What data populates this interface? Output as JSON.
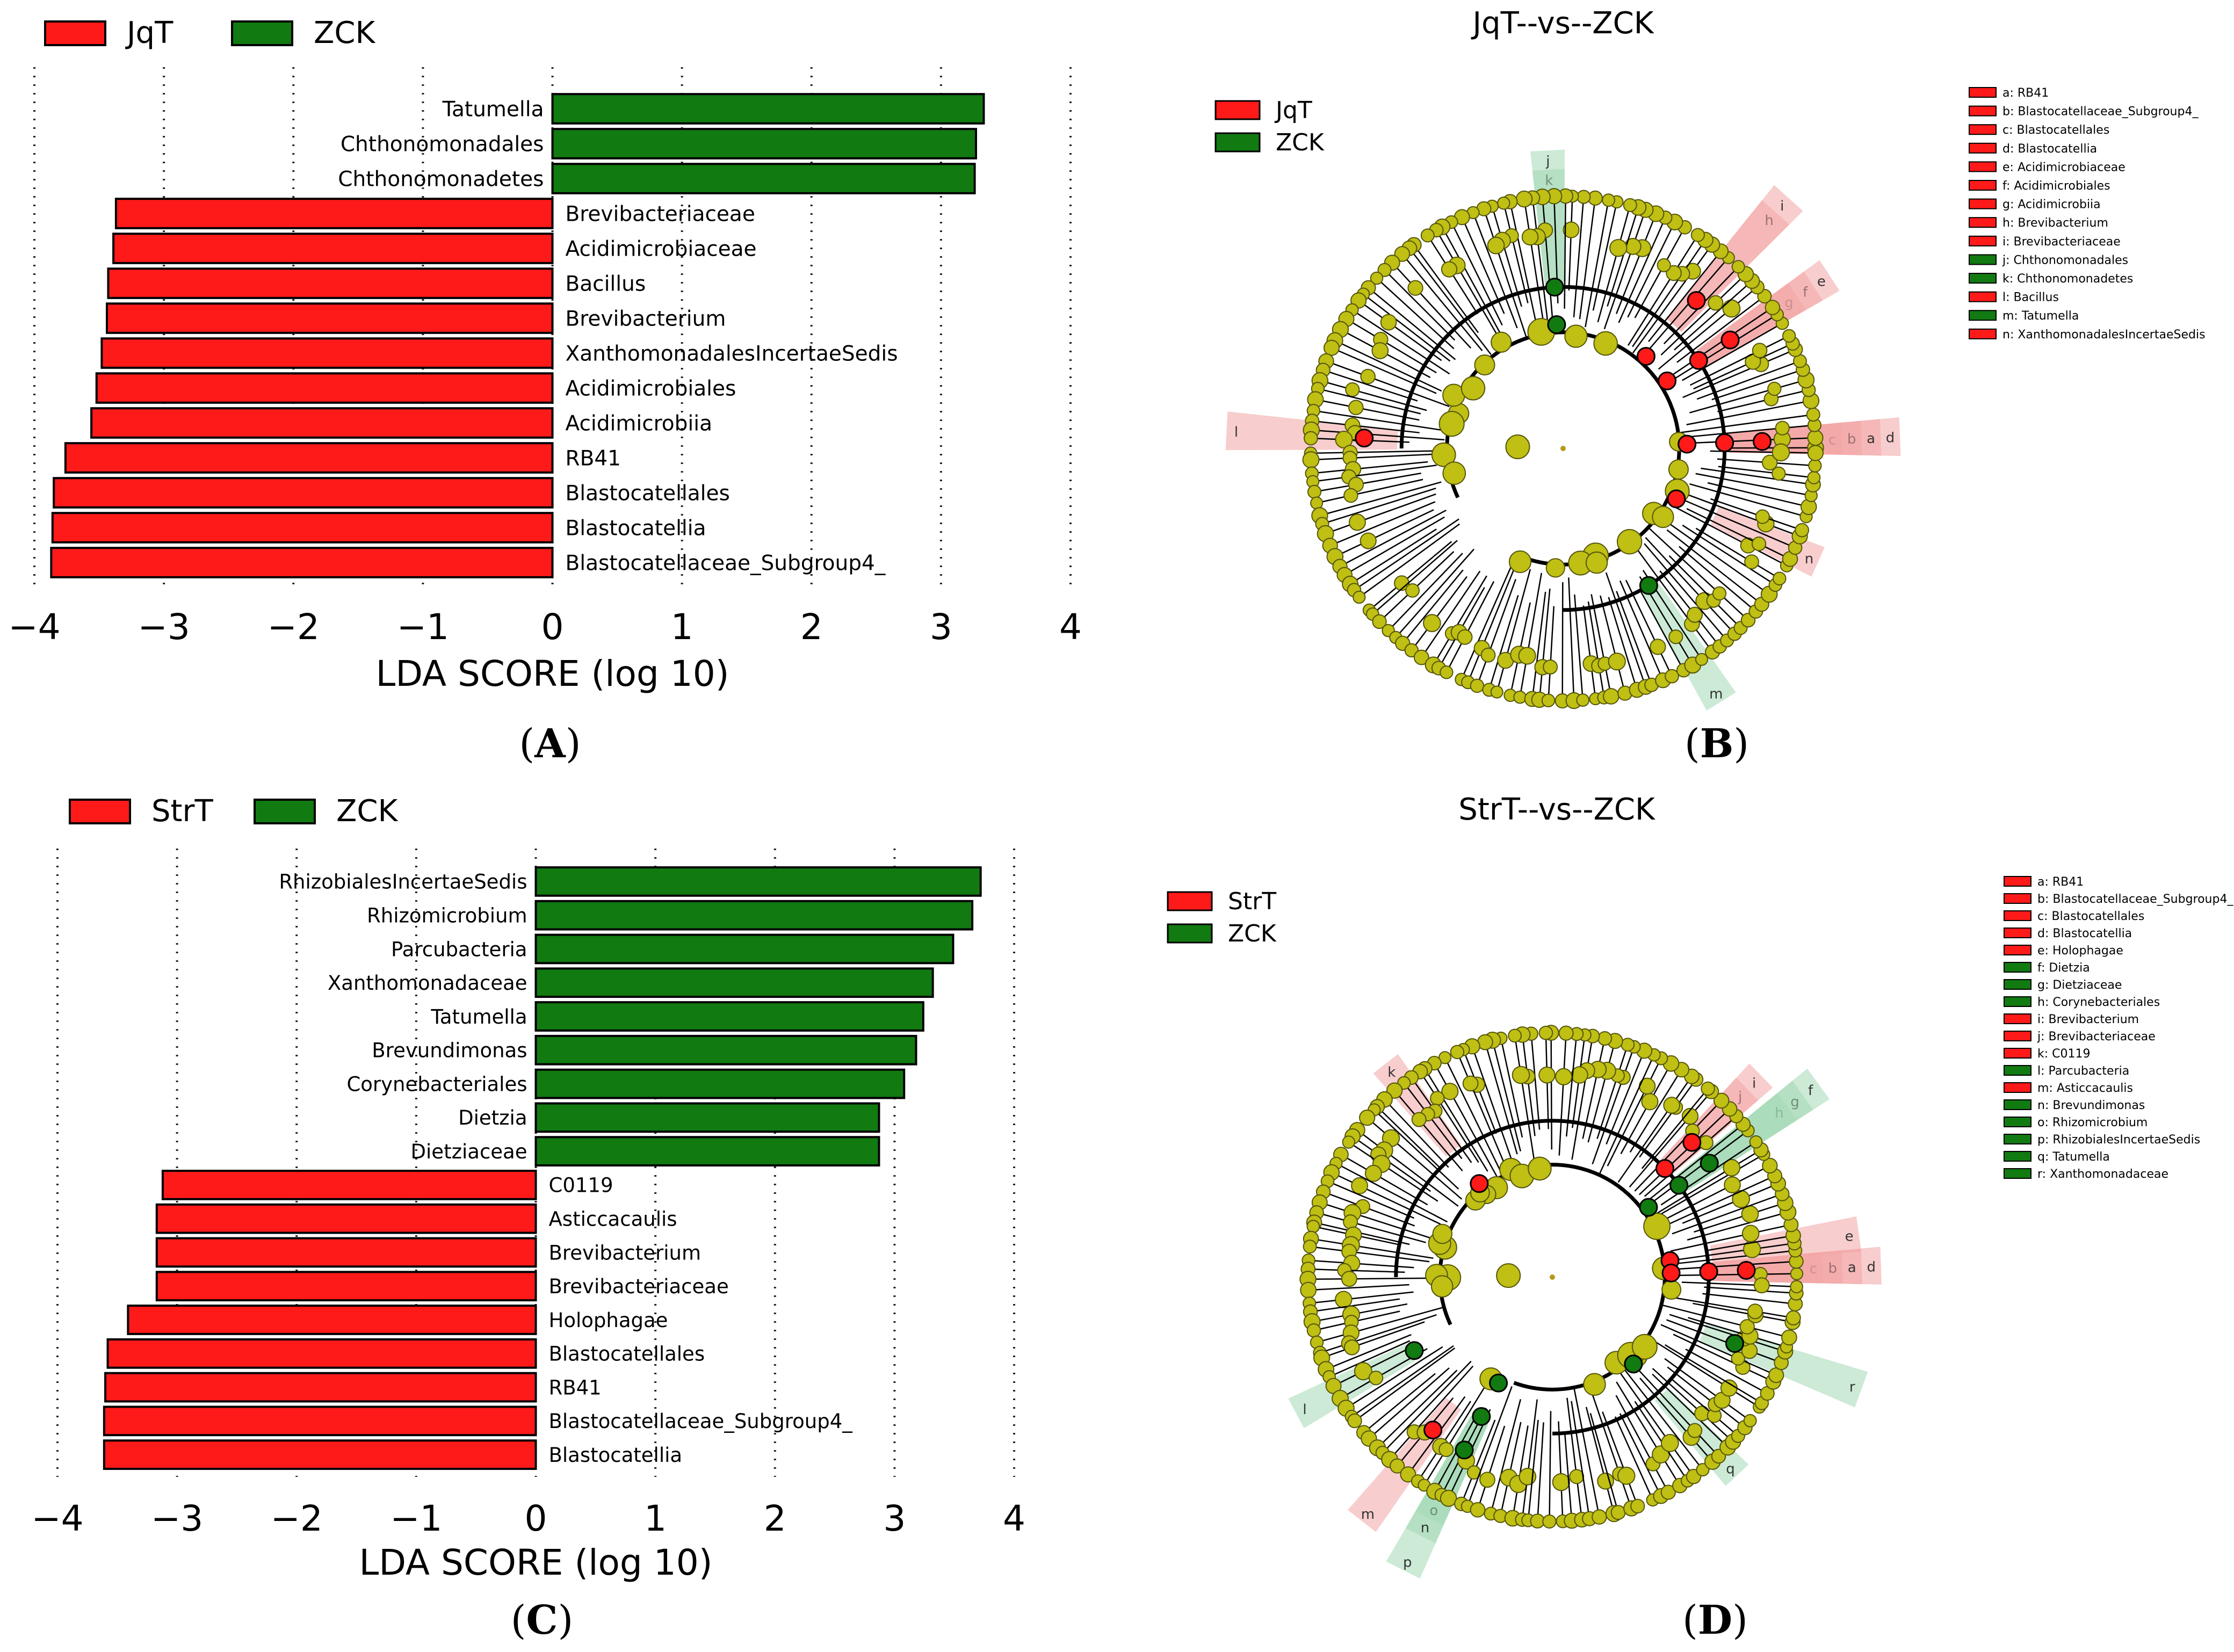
{
  "figure": {
    "panel_labels": [
      "A",
      "B",
      "C",
      "D"
    ]
  },
  "colors": {
    "red": "#ff1a1a",
    "green": "#117a11",
    "node_yellow": "#bfbf14",
    "node_edge": "#55550a",
    "red_shade": "#f4a6a6",
    "green_shade": "#a3d9b5"
  },
  "chart_data": [
    {
      "id": "A",
      "type": "bar",
      "orientation": "horizontal",
      "title": "",
      "xlabel": "LDA SCORE (log 10)",
      "xlim": [
        -4,
        4
      ],
      "xticks": [
        "−4",
        "−3",
        "−2",
        "−1",
        "0",
        "1",
        "2",
        "3",
        "4"
      ],
      "grid": "vertical dotted",
      "legend": [
        {
          "name": "JqT",
          "color": "red"
        },
        {
          "name": "ZCK",
          "color": "green"
        }
      ],
      "categories": [
        "Tatumella",
        "Chthonomonadales",
        "Chthonomonadetes",
        "Brevibacteriaceae",
        "Acidimicrobiaceae",
        "Bacillus",
        "Brevibacterium",
        "XanthomonadalesIncertaeSedis",
        "Acidimicrobiales",
        "Acidimicrobiia",
        "RB41",
        "Blastocatellales",
        "Blastocatellia",
        "Blastocatellaceae_Subgroup4_"
      ],
      "values": [
        3.33,
        3.27,
        3.26,
        -3.37,
        -3.39,
        -3.43,
        -3.44,
        -3.48,
        -3.52,
        -3.56,
        -3.76,
        -3.85,
        -3.86,
        -3.87
      ],
      "groups": [
        "ZCK",
        "ZCK",
        "ZCK",
        "JqT",
        "JqT",
        "JqT",
        "JqT",
        "JqT",
        "JqT",
        "JqT",
        "JqT",
        "JqT",
        "JqT",
        "JqT"
      ]
    },
    {
      "id": "B",
      "type": "cladogram",
      "title": "JqT--vs--ZCK",
      "legend": [
        {
          "name": "JqT",
          "color": "red"
        },
        {
          "name": "ZCK",
          "color": "green"
        }
      ],
      "key": [
        {
          "text": "a: RB41",
          "group": "red"
        },
        {
          "text": "b: Blastocatellaceae_Subgroup4_",
          "group": "red"
        },
        {
          "text": "c: Blastocatellales",
          "group": "red"
        },
        {
          "text": "d: Blastocatellia",
          "group": "red"
        },
        {
          "text": "e: Acidimicrobiaceae",
          "group": "red"
        },
        {
          "text": "f: Acidimicrobiales",
          "group": "red"
        },
        {
          "text": "g: Acidimicrobiia",
          "group": "red"
        },
        {
          "text": "h: Brevibacterium",
          "group": "red"
        },
        {
          "text": "i: Brevibacteriaceae",
          "group": "red"
        },
        {
          "text": "j: Chthonomonadales",
          "group": "green"
        },
        {
          "text": "k: Chthonomonadetes",
          "group": "green"
        },
        {
          "text": "l: Bacillus",
          "group": "red"
        },
        {
          "text": "m: Tatumella",
          "group": "green"
        },
        {
          "text": "n: XanthomonadalesIncertaeSedis",
          "group": "red"
        }
      ],
      "sector_labels": [
        {
          "letter": "k",
          "group": "green",
          "angle": 93
        },
        {
          "letter": "j",
          "group": "green",
          "angle": 93
        },
        {
          "letter": "h",
          "group": "red",
          "angle": 48
        },
        {
          "letter": "i",
          "group": "red",
          "angle": 48
        },
        {
          "letter": "g",
          "group": "red",
          "angle": 33
        },
        {
          "letter": "f",
          "group": "red",
          "angle": 33
        },
        {
          "letter": "e",
          "group": "red",
          "angle": 33
        },
        {
          "letter": "d",
          "group": "red",
          "angle": 2
        },
        {
          "letter": "c",
          "group": "red",
          "angle": 2
        },
        {
          "letter": "b",
          "group": "red",
          "angle": 2
        },
        {
          "letter": "a",
          "group": "red",
          "angle": 2
        },
        {
          "letter": "l",
          "group": "red",
          "angle": 177
        },
        {
          "letter": "n",
          "group": "red",
          "angle": -24
        },
        {
          "letter": "m",
          "group": "green",
          "angle": -58
        }
      ]
    },
    {
      "id": "C",
      "type": "bar",
      "orientation": "horizontal",
      "title": "",
      "xlabel": "LDA SCORE (log 10)",
      "xlim": [
        -4,
        4
      ],
      "xticks": [
        "−4",
        "−3",
        "−2",
        "−1",
        "0",
        "1",
        "2",
        "3",
        "4"
      ],
      "grid": "vertical dotted",
      "legend": [
        {
          "name": "StrT",
          "color": "red"
        },
        {
          "name": "ZCK",
          "color": "green"
        }
      ],
      "categories": [
        "RhizobialesIncertaeSedis",
        "Rhizomicrobium",
        "Parcubacteria",
        "Xanthomonadaceae",
        "Tatumella",
        "Brevundimonas",
        "Corynebacteriales",
        "Dietzia",
        "Dietziaceae",
        "C0119",
        "Asticcacaulis",
        "Brevibacterium",
        "Brevibacteriaceae",
        "Holophagae",
        "Blastocatellales",
        "RB41",
        "Blastocatellaceae_Subgroup4_",
        "Blastocatellia"
      ],
      "values": [
        3.72,
        3.65,
        3.49,
        3.32,
        3.24,
        3.18,
        3.08,
        2.87,
        2.87,
        -3.12,
        -3.17,
        -3.17,
        -3.17,
        -3.41,
        -3.58,
        -3.6,
        -3.61,
        -3.61
      ],
      "groups": [
        "ZCK",
        "ZCK",
        "ZCK",
        "ZCK",
        "ZCK",
        "ZCK",
        "ZCK",
        "ZCK",
        "ZCK",
        "StrT",
        "StrT",
        "StrT",
        "StrT",
        "StrT",
        "StrT",
        "StrT",
        "StrT",
        "StrT"
      ]
    },
    {
      "id": "D",
      "type": "cladogram",
      "title": "StrT--vs--ZCK",
      "legend": [
        {
          "name": "StrT",
          "color": "red"
        },
        {
          "name": "ZCK",
          "color": "green"
        }
      ],
      "key": [
        {
          "text": "a: RB41",
          "group": "red"
        },
        {
          "text": "b: Blastocatellaceae_Subgroup4_",
          "group": "red"
        },
        {
          "text": "c: Blastocatellales",
          "group": "red"
        },
        {
          "text": "d: Blastocatellia",
          "group": "red"
        },
        {
          "text": "e: Holophagae",
          "group": "red"
        },
        {
          "text": "f: Dietzia",
          "group": "green"
        },
        {
          "text": "g: Dietziaceae",
          "group": "green"
        },
        {
          "text": "h: Corynebacteriales",
          "group": "green"
        },
        {
          "text": "i: Brevibacterium",
          "group": "red"
        },
        {
          "text": "j: Brevibacteriaceae",
          "group": "red"
        },
        {
          "text": "k: C0119",
          "group": "red"
        },
        {
          "text": "l: Parcubacteria",
          "group": "green"
        },
        {
          "text": "m: Asticcacaulis",
          "group": "red"
        },
        {
          "text": "n: Brevundimonas",
          "group": "green"
        },
        {
          "text": "o: Rhizomicrobium",
          "group": "green"
        },
        {
          "text": "p: RhizobialesIncertaeSedis",
          "group": "green"
        },
        {
          "text": "q: Tatumella",
          "group": "green"
        },
        {
          "text": "r: Xanthomonadaceae",
          "group": "green"
        }
      ],
      "sector_labels": [
        {
          "letter": "k",
          "group": "red",
          "angle": 128
        },
        {
          "letter": "h",
          "group": "green",
          "angle": 36
        },
        {
          "letter": "g",
          "group": "green",
          "angle": 36
        },
        {
          "letter": "f",
          "group": "green",
          "angle": 36
        },
        {
          "letter": "j",
          "group": "red",
          "angle": 44
        },
        {
          "letter": "i",
          "group": "red",
          "angle": 44
        },
        {
          "letter": "e",
          "group": "red",
          "angle": 8
        },
        {
          "letter": "d",
          "group": "red",
          "angle": 2
        },
        {
          "letter": "c",
          "group": "red",
          "angle": 2
        },
        {
          "letter": "b",
          "group": "red",
          "angle": 2
        },
        {
          "letter": "a",
          "group": "red",
          "angle": 2
        },
        {
          "letter": "r",
          "group": "green",
          "angle": -20
        },
        {
          "letter": "q",
          "group": "green",
          "angle": -47
        },
        {
          "letter": "l",
          "group": "green",
          "angle": -152
        },
        {
          "letter": "m",
          "group": "red",
          "angle": -128
        },
        {
          "letter": "p",
          "group": "green",
          "angle": -117
        },
        {
          "letter": "o",
          "group": "green",
          "angle": -117
        },
        {
          "letter": "n",
          "group": "green",
          "angle": -117
        }
      ]
    }
  ]
}
